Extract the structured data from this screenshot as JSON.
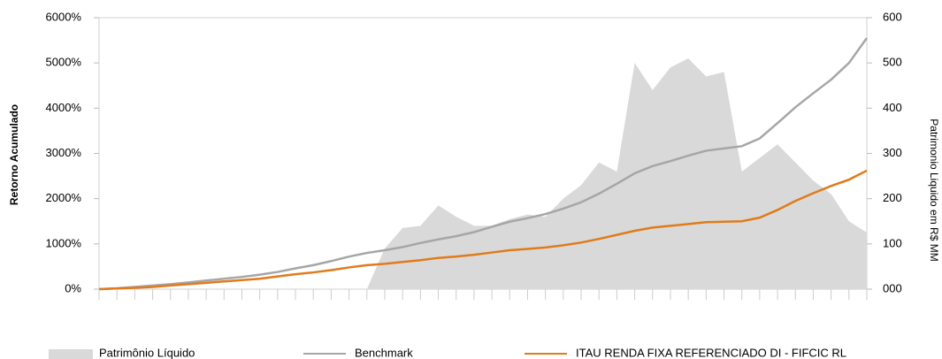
{
  "chart_data": {
    "type": "line",
    "y_label": "Retorno Acumulado",
    "y2_label": "Patrimonio Liquido em R$ MM",
    "categories": [
      null,
      null,
      null,
      null,
      null,
      null,
      null,
      null,
      null,
      null,
      null,
      null,
      null,
      null,
      null,
      null,
      null,
      null,
      null,
      null,
      null,
      null,
      null,
      null,
      null,
      null,
      null,
      null,
      null,
      null,
      null,
      null,
      null,
      null,
      null,
      null,
      null,
      null,
      null,
      null,
      null,
      null,
      null,
      null
    ],
    "series": [
      {
        "name": "Patrimônio Líquido",
        "kind": "area",
        "axis": "y2",
        "color": "#d9d9d9",
        "values": [
          0,
          0,
          0,
          0,
          0,
          0,
          0,
          0,
          0,
          0,
          0,
          0,
          0,
          0,
          0,
          0,
          90,
          135,
          140,
          185,
          160,
          140,
          140,
          155,
          165,
          160,
          200,
          230,
          280,
          260,
          500,
          440,
          490,
          510,
          470,
          480,
          260,
          290,
          320,
          280,
          240,
          210,
          150,
          125
        ]
      },
      {
        "name": "Benchmark",
        "kind": "line",
        "color": "#a6a6a6",
        "values": [
          0,
          20,
          50,
          80,
          110,
          150,
          190,
          230,
          270,
          320,
          380,
          460,
          530,
          620,
          720,
          800,
          860,
          930,
          1020,
          1100,
          1170,
          1260,
          1380,
          1490,
          1570,
          1660,
          1780,
          1920,
          2110,
          2330,
          2560,
          2720,
          2830,
          2950,
          3060,
          3110,
          3160,
          3330,
          3670,
          4020,
          4330,
          4630,
          5000,
          5550
        ]
      },
      {
        "name": "ITAU RENDA FIXA REFERENCIADO DI - FIFCIC RL",
        "kind": "line",
        "color": "#e07b1a",
        "values": [
          0,
          15,
          30,
          50,
          80,
          110,
          140,
          170,
          200,
          230,
          280,
          330,
          370,
          420,
          480,
          530,
          560,
          600,
          640,
          690,
          720,
          760,
          810,
          860,
          890,
          920,
          970,
          1030,
          1110,
          1200,
          1290,
          1360,
          1400,
          1440,
          1480,
          1490,
          1500,
          1580,
          1750,
          1950,
          2120,
          2280,
          2420,
          2620
        ]
      }
    ],
    "ylim": [
      0,
      6000
    ],
    "yticks": [
      {
        "value": 0,
        "label": "0%"
      },
      {
        "value": 1000,
        "label": "1000%"
      },
      {
        "value": 2000,
        "label": "2000%"
      },
      {
        "value": 3000,
        "label": "3000%"
      },
      {
        "value": 4000,
        "label": "4000%"
      },
      {
        "value": 5000,
        "label": "5000%"
      },
      {
        "value": 6000,
        "label": "6000%"
      }
    ],
    "y2lim": [
      0,
      600
    ],
    "y2ticks": [
      {
        "value": 0,
        "label": "000"
      },
      100,
      200,
      300,
      400,
      500,
      600
    ]
  }
}
